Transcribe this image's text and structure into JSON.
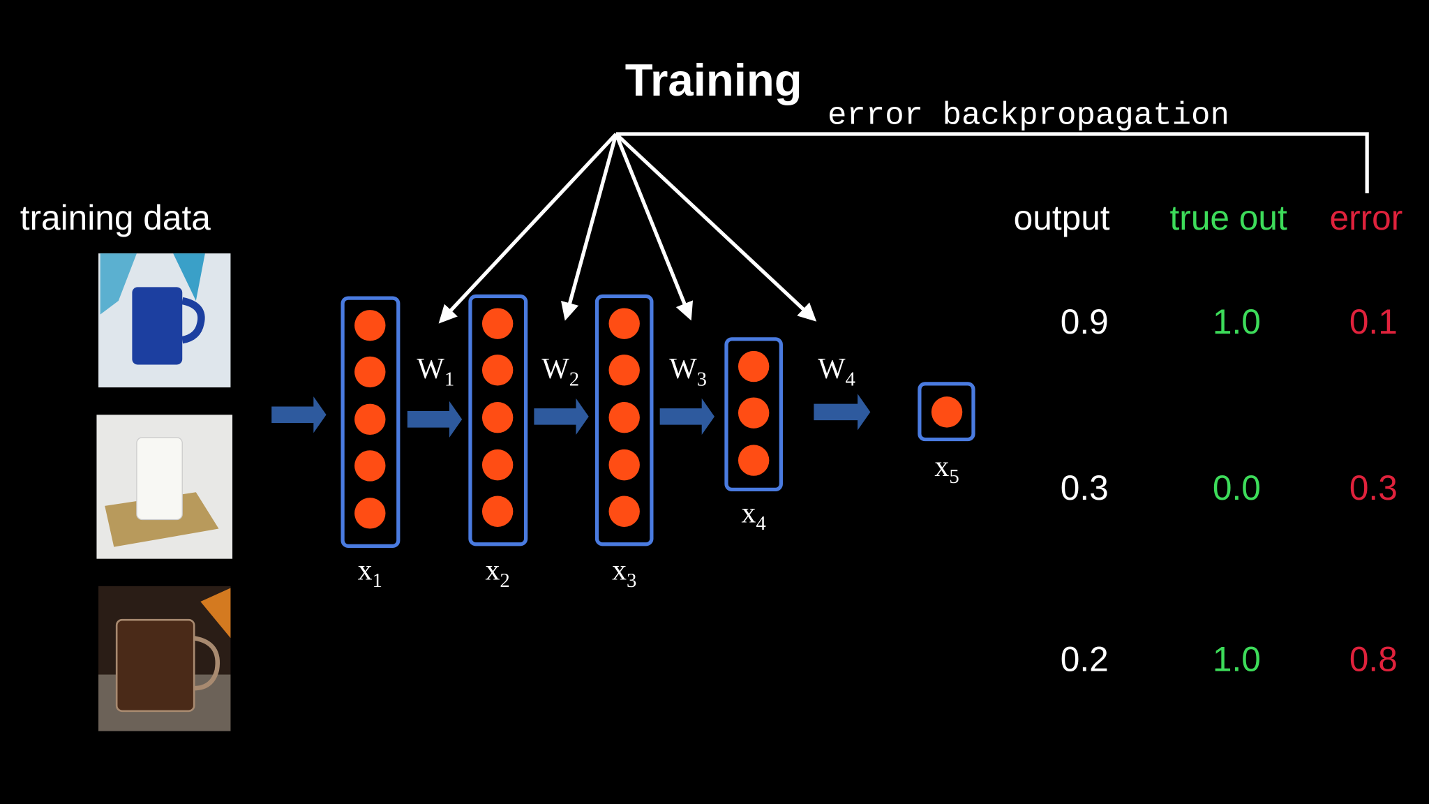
{
  "title": "Training",
  "subtitle": "error backpropagation",
  "training_data_label": "training data",
  "layers": [
    {
      "base": "x",
      "sub": "1"
    },
    {
      "base": "x",
      "sub": "2"
    },
    {
      "base": "x",
      "sub": "3"
    },
    {
      "base": "x",
      "sub": "4"
    },
    {
      "base": "x",
      "sub": "5"
    }
  ],
  "weights": [
    {
      "base": "W",
      "sub": "1"
    },
    {
      "base": "W",
      "sub": "2"
    },
    {
      "base": "W",
      "sub": "3"
    },
    {
      "base": "W",
      "sub": "4"
    }
  ],
  "table": {
    "headers": [
      "output",
      "true out",
      "error"
    ],
    "rows": [
      [
        "0.9",
        "1.0",
        "0.1"
      ],
      [
        "0.3",
        "0.0",
        "0.3"
      ],
      [
        "0.2",
        "1.0",
        "0.8"
      ]
    ]
  }
}
